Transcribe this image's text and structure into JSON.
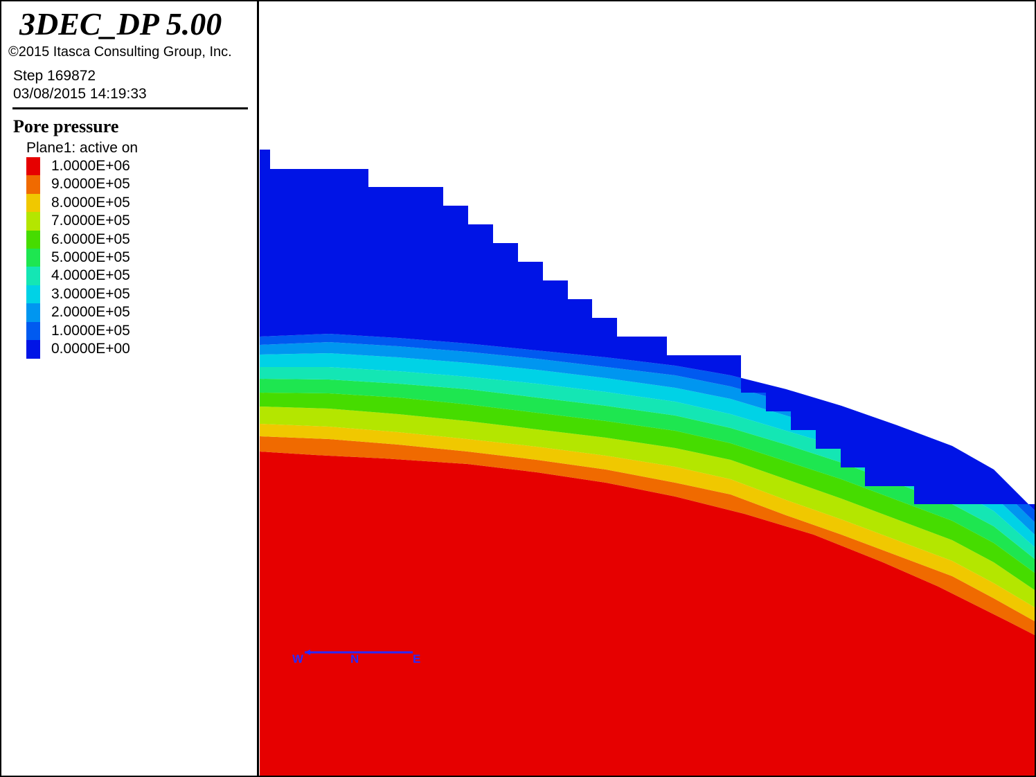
{
  "header": {
    "app_title": "3DEC_DP 5.00",
    "copyright": "©2015 Itasca Consulting Group, Inc.",
    "step": "Step 169872",
    "datetime": "03/08/2015 14:19:33"
  },
  "legend": {
    "title": "Pore pressure",
    "plane_status": "Plane1: active on",
    "items": [
      {
        "label": "1.0000E+06",
        "color": "#e60000"
      },
      {
        "label": "9.0000E+05",
        "color": "#f06a00"
      },
      {
        "label": "8.0000E+05",
        "color": "#f0c800"
      },
      {
        "label": "7.0000E+05",
        "color": "#b4e600"
      },
      {
        "label": "6.0000E+05",
        "color": "#46dc00"
      },
      {
        "label": "5.0000E+05",
        "color": "#1ee650"
      },
      {
        "label": "4.0000E+05",
        "color": "#14e6b4"
      },
      {
        "label": "3.0000E+05",
        "color": "#00d2e6"
      },
      {
        "label": "2.0000E+05",
        "color": "#0096f0"
      },
      {
        "label": "1.0000E+05",
        "color": "#005af0"
      },
      {
        "label": "0.0000E+00",
        "color": "#0014e6"
      }
    ]
  },
  "compass": {
    "west": "W",
    "north": "N",
    "east": "E",
    "color": "#2a2aff"
  },
  "colors": {
    "red_zone": "#e60000",
    "blue_zone": "#0014e6",
    "background": "#ffffff",
    "border": "#000000"
  }
}
